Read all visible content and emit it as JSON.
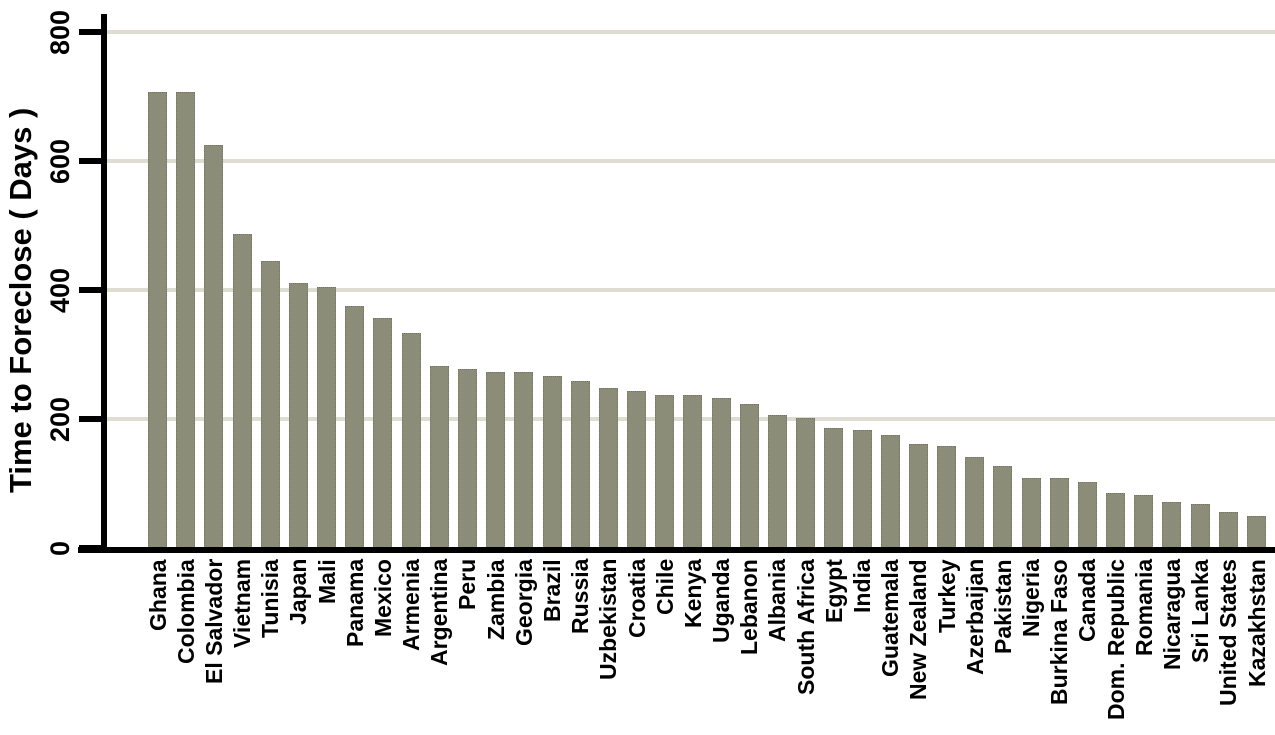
{
  "chart_data": {
    "type": "bar",
    "title": "",
    "ylabel": "Time to Foreclose ( Days )",
    "xlabel": "",
    "ylim": [
      0,
      800
    ],
    "yticks": [
      0,
      200,
      400,
      600,
      800
    ],
    "grid": "horizontal",
    "legend": "none",
    "bar_color": "#8b8d79",
    "gridline_color": "#dfddd1",
    "axis_color": "#000000",
    "categories": [
      "Ghana",
      "Colombia",
      "El Salvador",
      "Vietnam",
      "Tunisia",
      "Japan",
      "Mali",
      "Panama",
      "Mexico",
      "Armenia",
      "Argentina",
      "Peru",
      "Zambia",
      "Georgia",
      "Brazil",
      "Russia",
      "Uzbekistan",
      "Croatia",
      "Chile",
      "Kenya",
      "Uganda",
      "Lebanon",
      "Albania",
      "South Africa",
      "Egypt",
      "India",
      "Guatemala",
      "New Zealand",
      "Turkey",
      "Azerbaijan",
      "Pakistan",
      "Nigeria",
      "Burkina Faso",
      "Canada",
      "Dom. Republic",
      "Romania",
      "Nicaragua",
      "Sri Lanka",
      "United States",
      "Kazakhstan"
    ],
    "values": [
      706,
      706,
      624,
      486,
      444,
      410,
      404,
      374,
      356,
      332,
      282,
      276,
      272,
      272,
      266,
      258,
      247,
      242,
      237,
      237,
      232,
      222,
      206,
      201,
      186,
      182,
      175,
      161,
      157,
      140,
      127,
      107,
      107,
      102,
      85,
      81,
      71,
      67,
      55,
      49
    ]
  }
}
